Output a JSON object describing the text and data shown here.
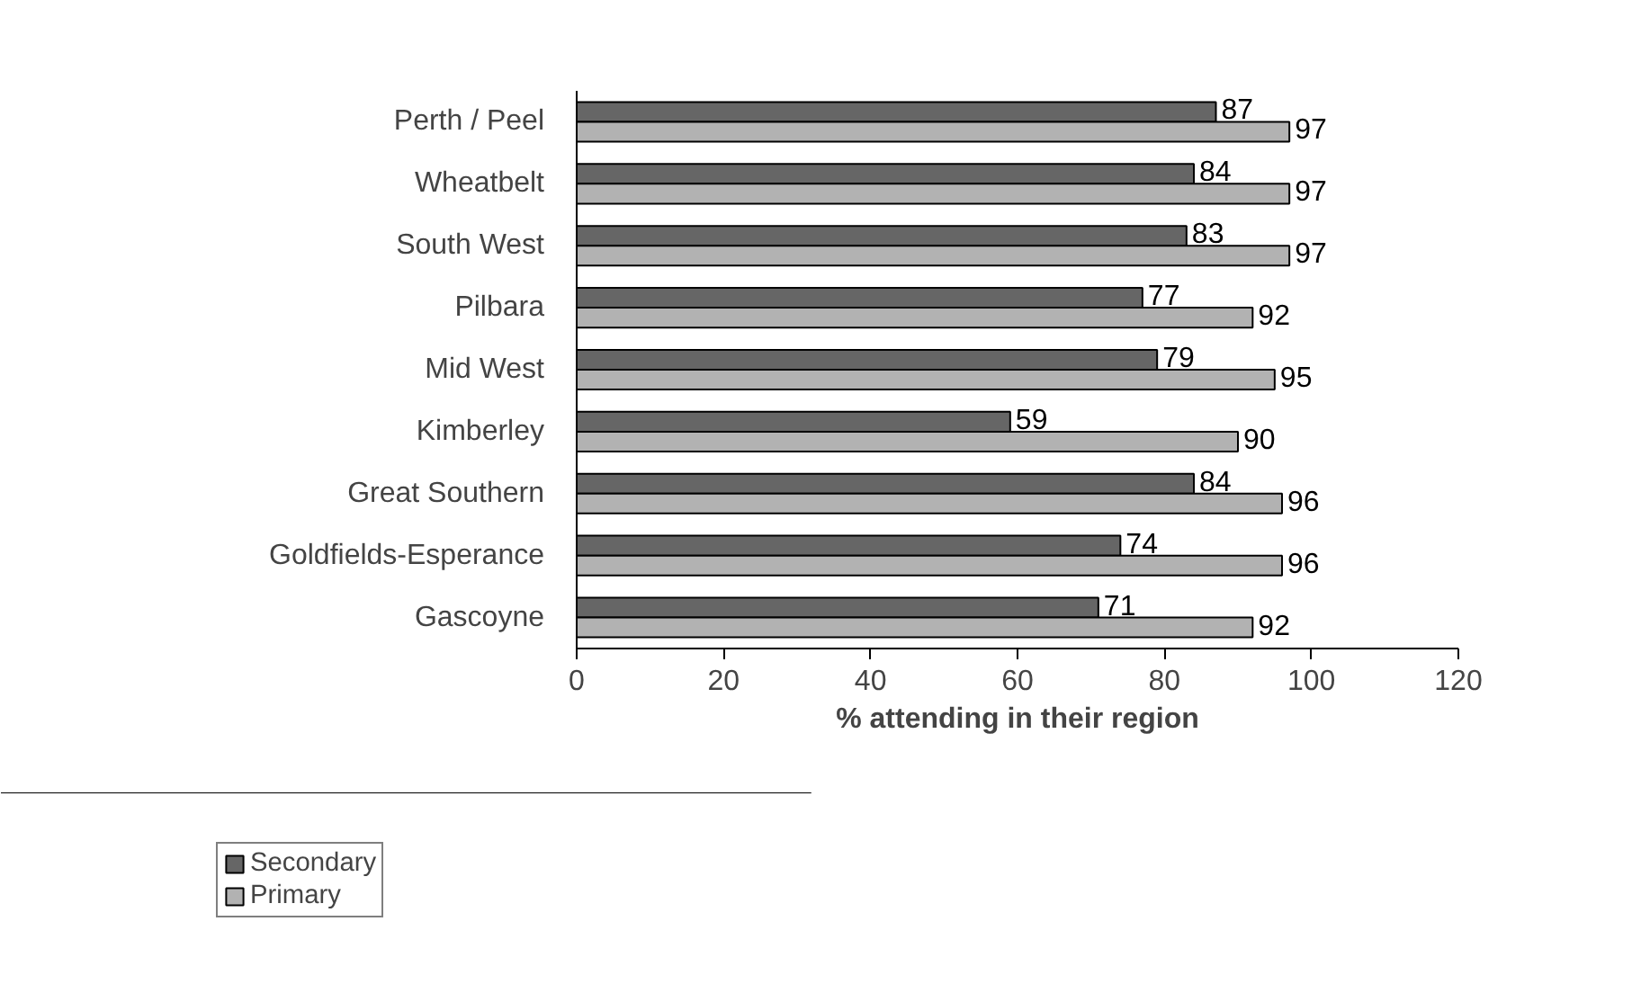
{
  "chart_data": {
    "type": "bar",
    "orientation": "horizontal",
    "xlabel": "% attending in their region",
    "categories": [
      "Perth / Peel",
      "Wheatbelt",
      "South West",
      "Pilbara",
      "Mid West",
      "Kimberley",
      "Great Southern",
      "Goldfields-Esperance",
      "Gascoyne"
    ],
    "series": [
      {
        "name": "Secondary",
        "color": "#666666",
        "values": [
          87,
          84,
          83,
          77,
          79,
          59,
          84,
          74,
          71
        ]
      },
      {
        "name": "Primary",
        "color": "#b2b2b2",
        "values": [
          97,
          97,
          97,
          92,
          95,
          90,
          96,
          96,
          92
        ]
      }
    ],
    "xlim": [
      0,
      120
    ],
    "xticks": [
      0,
      20,
      40,
      60,
      80,
      100,
      120
    ],
    "data_labels": true,
    "grid": false,
    "legend": "bottom left"
  }
}
